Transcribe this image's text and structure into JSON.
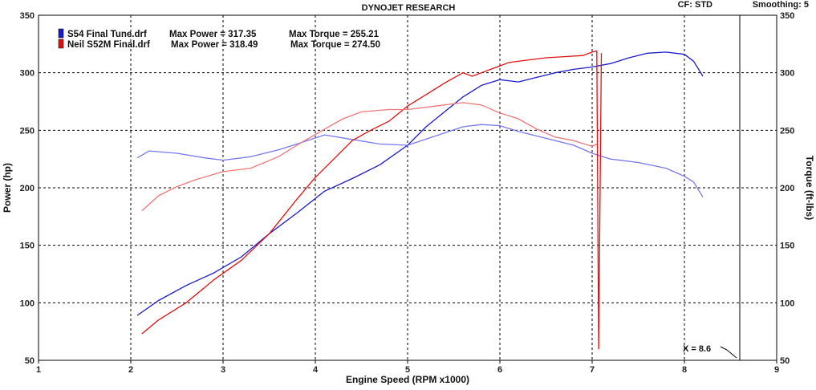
{
  "header": {
    "title": "DYNOJET RESEARCH",
    "cf_label": "CF: STD",
    "smoothing_label": "Smoothing: 5"
  },
  "legend": [
    {
      "run": "S54 Final Tune.drf",
      "power_text": "Max Power = 317.35",
      "torque_text": "Max Torque = 255.21",
      "color": "#1a1acc"
    },
    {
      "run": "Neil S52M Final.drf",
      "power_text": "Max Power = 318.49",
      "torque_text": "Max Torque = 274.50",
      "color": "#e01010"
    }
  ],
  "cursor": {
    "label": "X = 8.6",
    "x": 8.6
  },
  "chart_data": {
    "type": "line",
    "title": "DYNOJET RESEARCH",
    "xlabel": "Engine Speed (RPM x1000)",
    "ylabel": "Power (hp)",
    "y2label": "Torque (ft-lbs)",
    "xlim": [
      1,
      9
    ],
    "ylim": [
      50,
      350
    ],
    "y2lim": [
      50,
      350
    ],
    "xticks": [
      "1",
      "2",
      "3",
      "4",
      "5",
      "6",
      "7",
      "8",
      "9"
    ],
    "yticks": [
      "50",
      "100",
      "150",
      "200",
      "250",
      "300",
      "350"
    ],
    "y2ticks": [
      "50",
      "100",
      "150",
      "200",
      "250",
      "300",
      "350"
    ],
    "grid": true,
    "legend_position": "top-left",
    "series": [
      {
        "name": "S54 Final Tune.drf",
        "measure": "power",
        "color": "#1a1acc",
        "x": [
          2.07,
          2.3,
          2.6,
          2.9,
          3.2,
          3.5,
          3.8,
          4.1,
          4.4,
          4.7,
          5.0,
          5.2,
          5.4,
          5.6,
          5.8,
          6.0,
          6.2,
          6.4,
          6.6,
          6.8,
          7.0,
          7.2,
          7.4,
          7.6,
          7.8,
          8.0,
          8.1,
          8.2
        ],
        "y": [
          89,
          102,
          115,
          126,
          140,
          160,
          178,
          197,
          208,
          220,
          237,
          253,
          266,
          279,
          289,
          294,
          292,
          296,
          300,
          303,
          305,
          308,
          313,
          317,
          318,
          316,
          310,
          297
        ]
      },
      {
        "name": "S54 Final Tune.drf",
        "measure": "torque",
        "color": "#7777ee",
        "x": [
          2.07,
          2.2,
          2.5,
          2.8,
          3.0,
          3.3,
          3.6,
          3.8,
          4.1,
          4.4,
          4.7,
          5.0,
          5.3,
          5.6,
          5.8,
          6.0,
          6.2,
          6.5,
          6.8,
          7.0,
          7.2,
          7.5,
          7.8,
          8.0,
          8.1,
          8.2
        ],
        "y": [
          226,
          232,
          230,
          226,
          224,
          227,
          233,
          238,
          246,
          242,
          238,
          237,
          245,
          253,
          255,
          254,
          249,
          243,
          237,
          230,
          225,
          222,
          217,
          210,
          205,
          192
        ]
      },
      {
        "name": "Neil S52M Final.drf",
        "measure": "power",
        "color": "#e01010",
        "x": [
          2.12,
          2.3,
          2.6,
          2.9,
          3.2,
          3.5,
          3.8,
          4.0,
          4.2,
          4.4,
          4.6,
          4.8,
          5.0,
          5.2,
          5.4,
          5.6,
          5.7,
          5.8,
          5.9,
          6.0,
          6.1,
          6.3,
          6.5,
          6.7,
          6.9,
          7.0,
          7.05,
          7.07,
          7.1
        ],
        "y": [
          73,
          85,
          100,
          120,
          137,
          160,
          190,
          209,
          225,
          241,
          250,
          258,
          271,
          281,
          291,
          300,
          297,
          300,
          303,
          306,
          309,
          311,
          313,
          314,
          315,
          318,
          319,
          60,
          317
        ]
      },
      {
        "name": "Neil S52M Final.drf",
        "measure": "torque",
        "color": "#ee7777",
        "x": [
          2.12,
          2.3,
          2.5,
          2.7,
          3.0,
          3.3,
          3.6,
          3.8,
          4.1,
          4.3,
          4.5,
          4.8,
          5.0,
          5.3,
          5.6,
          5.8,
          6.0,
          6.2,
          6.4,
          6.6,
          6.8,
          7.0,
          7.05
        ],
        "y": [
          180,
          193,
          201,
          207,
          214,
          217,
          227,
          237,
          251,
          260,
          266,
          268,
          268,
          271,
          274,
          272,
          265,
          260,
          251,
          244,
          241,
          236,
          238
        ]
      }
    ]
  }
}
